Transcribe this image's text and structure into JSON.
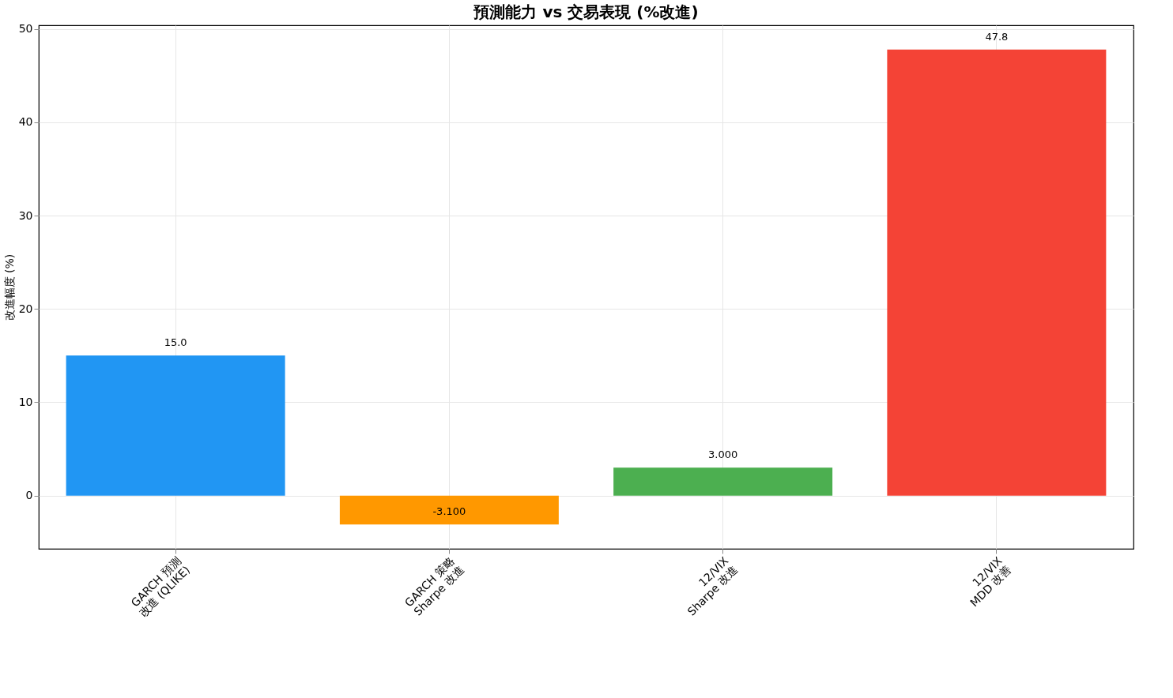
{
  "chart_data": {
    "type": "bar",
    "title": "預測能力 vs 交易表現 (%改進)",
    "ylabel": "改進幅度 (%)",
    "categories": [
      "GARCH 預測\n改進 (QLIKE)",
      "GARCH 策略\nSharpe 改進",
      "12/VIX\nSharpe 改進",
      "12/VIX\nMDD 改善"
    ],
    "values": [
      15.0,
      -3.1,
      3.0,
      47.8
    ],
    "colors": [
      "#2196f3",
      "#ff9800",
      "#4caf50",
      "#f44336"
    ],
    "value_labels": [
      "15.0",
      "-3.100",
      "3.000",
      "47.8"
    ],
    "ylim": [
      -5.7,
      50.4
    ],
    "yticks": [
      0,
      10,
      20,
      30,
      40,
      50
    ],
    "grid": true
  }
}
